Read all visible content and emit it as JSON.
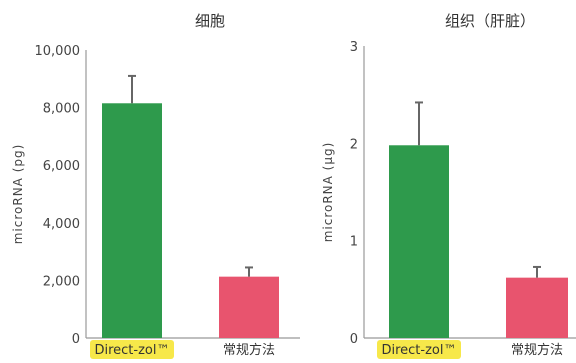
{
  "colors": {
    "direct": "#2e9a4c",
    "conventional": "#e8546e",
    "highlight": "#f7e84a"
  },
  "chart_data": [
    {
      "type": "bar",
      "title": "细胞",
      "ylabel": "microRNA (pg)",
      "categories": [
        "Direct-zol™",
        "常规方法"
      ],
      "values": [
        8150,
        2130
      ],
      "error_upper": [
        9100,
        2450
      ],
      "ylim": [
        0,
        10000
      ],
      "yticks": [
        0,
        2000,
        4000,
        6000,
        8000,
        10000
      ],
      "ytick_labels": [
        "0",
        "2,000",
        "4,000",
        "6,000",
        "8,000",
        "10,000"
      ],
      "highlight_category": 0,
      "grid": false
    },
    {
      "type": "bar",
      "title": "组织（肝脏）",
      "ylabel": "microRNA (μg)",
      "categories": [
        "Direct-zol™",
        "常规方法"
      ],
      "values": [
        1.98,
        0.62
      ],
      "error_upper": [
        2.42,
        0.73
      ],
      "ylim": [
        0,
        3
      ],
      "yticks": [
        0,
        1,
        2,
        3
      ],
      "ytick_labels": [
        "0",
        "1",
        "2",
        "3"
      ],
      "highlight_category": 0,
      "grid": false
    }
  ]
}
